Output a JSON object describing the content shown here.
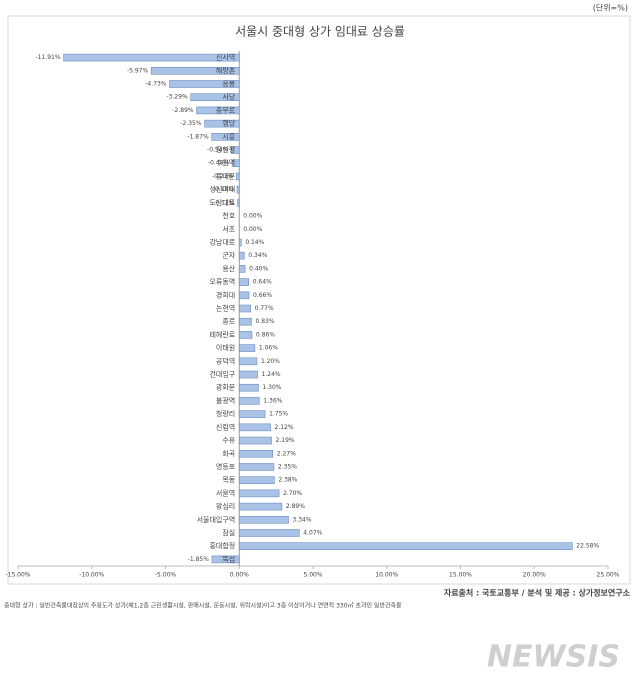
{
  "chart_data": {
    "type": "hbar",
    "title": "서울시 중대형 상가 임대료 상승률",
    "unit_note": "(단위=%)",
    "source": "자료출처 : 국토교통부 / 분석 및 제공 : 상가정보연구소",
    "footnote": "중대형 상가 : 일반건축물대장상의 주용도가 상가(제1,2종 근린생활시설, 판매시설, 운동시설, 위락시설)이고 3층 이상이거나 연면적 330㎡ 초과인 일반건축물",
    "watermark": "NEWSIS",
    "color": "#a9c2e6",
    "categories": [
      "신사역",
      "해방촌",
      "응봉",
      "사당",
      "충무로",
      "행당",
      "시흥",
      "장한평",
      "수원역",
      "동대문",
      "성신여대",
      "도산대로",
      "천호",
      "서초",
      "강남대로",
      "군자",
      "용산",
      "오류동역",
      "경희대",
      "논현역",
      "종로",
      "테헤란로",
      "이태원",
      "공덕역",
      "건대입구",
      "광화문",
      "불광역",
      "청량리",
      "신림역",
      "수유",
      "화곡",
      "영등포",
      "목동",
      "서울역",
      "왕십리",
      "서울대입구역",
      "잠실",
      "홍대합정",
      "뚝섬"
    ],
    "values": [
      -11.91,
      -5.97,
      -4.73,
      -3.29,
      -2.89,
      -2.35,
      -1.87,
      -0.54,
      -0.48,
      -0.21,
      -0.15,
      -0.12,
      0.0,
      0.0,
      0.14,
      0.34,
      0.4,
      0.64,
      0.66,
      0.77,
      0.83,
      0.86,
      1.06,
      1.2,
      1.24,
      1.3,
      1.36,
      1.75,
      2.12,
      2.19,
      2.27,
      2.35,
      2.38,
      2.7,
      2.89,
      3.34,
      4.07,
      22.58,
      -1.85
    ],
    "value_labels": [
      "-11.91%",
      "-5.97%",
      "-4.73%",
      "-3.29%",
      "-2.89%",
      "-2.35%",
      "-1.87%",
      "-0.54%",
      "-0.48%",
      "-0.21%",
      "-0.15%",
      "-0.12%",
      "0.00%",
      "0.00%",
      "0.14%",
      "0.34%",
      "0.40%",
      "0.64%",
      "0.66%",
      "0.77%",
      "0.83%",
      "0.86%",
      "1.06%",
      "1.20%",
      "1.24%",
      "1.30%",
      "1.36%",
      "1.75%",
      "2.12%",
      "2.19%",
      "2.27%",
      "2.35%",
      "2.38%",
      "2.70%",
      "2.89%",
      "3.34%",
      "4.07%",
      "22.58%",
      "-1.85%"
    ],
    "xlim": [
      -15,
      25
    ],
    "xticks": [
      {
        "value": -15,
        "label": "-15.00%"
      },
      {
        "value": -10,
        "label": "-10.00%"
      },
      {
        "value": -5,
        "label": "-5.00%"
      },
      {
        "value": 0,
        "label": "0.00%"
      },
      {
        "value": 5,
        "label": "5.00%"
      },
      {
        "value": 10,
        "label": "10.00%"
      },
      {
        "value": 15,
        "label": "15.00%"
      },
      {
        "value": 20,
        "label": "20.00%"
      },
      {
        "value": 25,
        "label": "25.00%"
      }
    ]
  }
}
